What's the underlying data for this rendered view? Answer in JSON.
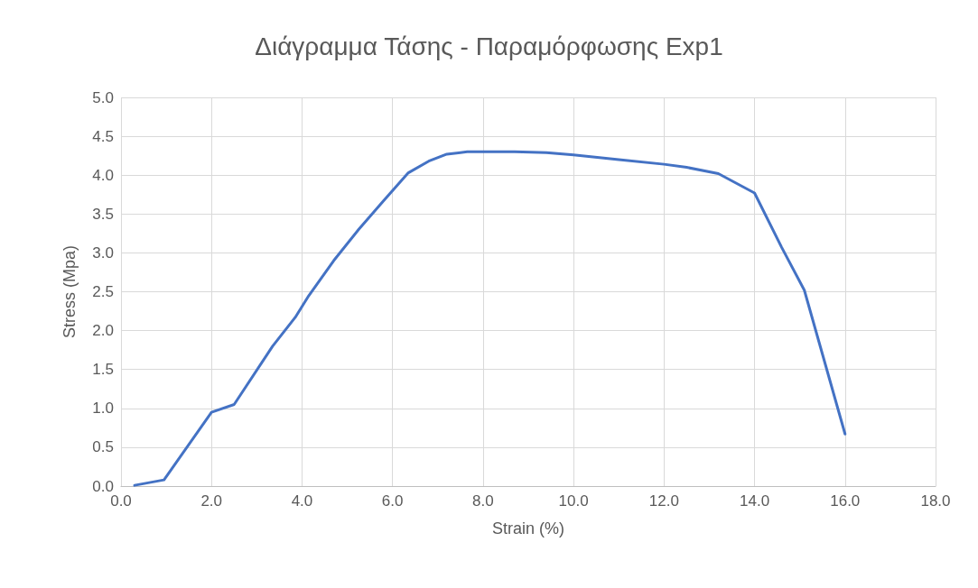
{
  "chart_data": {
    "type": "line",
    "title": "Διάγραμμα Τάσης - Παραμόρφωσης Exp1",
    "xlabel": "Strain (%)",
    "ylabel": "Stress (Mpa)",
    "x": [
      0.3,
      0.95,
      2.0,
      2.5,
      3.35,
      3.85,
      4.15,
      4.7,
      5.25,
      5.8,
      6.35,
      6.8,
      7.2,
      7.65,
      8.7,
      9.4,
      10.0,
      11.0,
      12.0,
      12.5,
      13.2,
      14.0,
      14.6,
      15.1,
      16.0
    ],
    "series": [
      {
        "color": "#4472c4",
        "values": [
          0.01,
          0.08,
          0.95,
          1.05,
          1.8,
          2.17,
          2.45,
          2.9,
          3.3,
          3.67,
          4.03,
          4.18,
          4.27,
          4.3,
          4.3,
          4.29,
          4.26,
          4.2,
          4.14,
          4.1,
          4.02,
          3.77,
          3.07,
          2.52,
          0.67
        ]
      }
    ],
    "xlim": [
      0,
      18
    ],
    "xticks": [
      {
        "value": 0,
        "label": "0.0"
      },
      {
        "value": 2,
        "label": "2.0"
      },
      {
        "value": 4,
        "label": "4.0"
      },
      {
        "value": 6,
        "label": "6.0"
      },
      {
        "value": 8,
        "label": "8.0"
      },
      {
        "value": 10,
        "label": "10.0"
      },
      {
        "value": 12,
        "label": "12.0"
      },
      {
        "value": 14,
        "label": "14.0"
      },
      {
        "value": 16,
        "label": "16.0"
      },
      {
        "value": 18,
        "label": "18.0"
      }
    ],
    "ylim": [
      0,
      5
    ],
    "yticks": [
      {
        "value": 0,
        "label": "0.0"
      },
      {
        "value": 0.5,
        "label": "0.5"
      },
      {
        "value": 1,
        "label": "1.0"
      },
      {
        "value": 1.5,
        "label": "1.5"
      },
      {
        "value": 2,
        "label": "2.0"
      },
      {
        "value": 2.5,
        "label": "2.5"
      },
      {
        "value": 3,
        "label": "3.0"
      },
      {
        "value": 3.5,
        "label": "3.5"
      },
      {
        "value": 4,
        "label": "4.0"
      },
      {
        "value": 4.5,
        "label": "4.5"
      },
      {
        "value": 5,
        "label": "5.0"
      }
    ],
    "grid": true,
    "marker": "none",
    "line_style": "solid"
  }
}
